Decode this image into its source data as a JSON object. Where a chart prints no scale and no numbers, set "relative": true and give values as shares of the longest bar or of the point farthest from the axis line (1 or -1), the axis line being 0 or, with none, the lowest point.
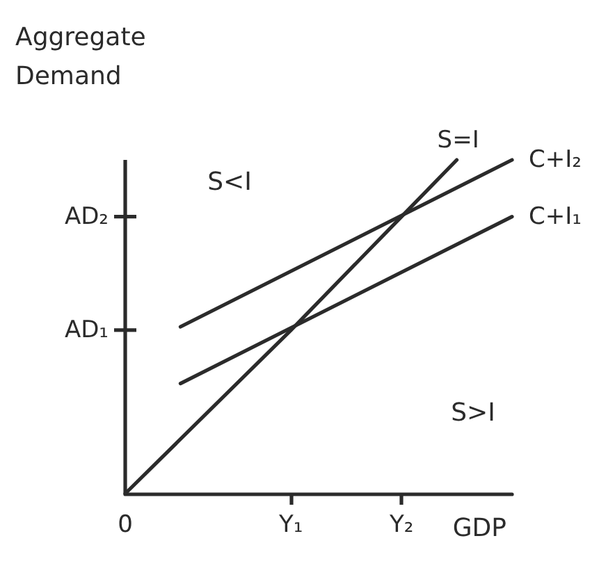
{
  "chart_data": {
    "type": "line",
    "ylabel": "Aggregate Demand",
    "xlabel": "GDP",
    "relative": true,
    "categories": [
      "0",
      null,
      null,
      "Y₁",
      null,
      "Y₂",
      null,
      null
    ],
    "series": [
      {
        "name": "S=I",
        "color": "#2b2b2b",
        "values": [
          0,
          null,
          null,
          0.49,
          null,
          0.83,
          1,
          null
        ]
      },
      {
        "name": "C+I₂",
        "color": "#2b2b2b",
        "values": [
          null,
          0.5,
          null,
          null,
          null,
          null,
          null,
          1
        ]
      },
      {
        "name": "C+I₁",
        "color": "#2b2b2b",
        "values": [
          null,
          0.33,
          null,
          null,
          null,
          null,
          null,
          0.83
        ]
      }
    ],
    "annotations": [
      "AD₁",
      "AD₂",
      "S<I",
      "S>I"
    ],
    "grid": false,
    "legend": false,
    "marker": "none",
    "line_style": "solid"
  }
}
